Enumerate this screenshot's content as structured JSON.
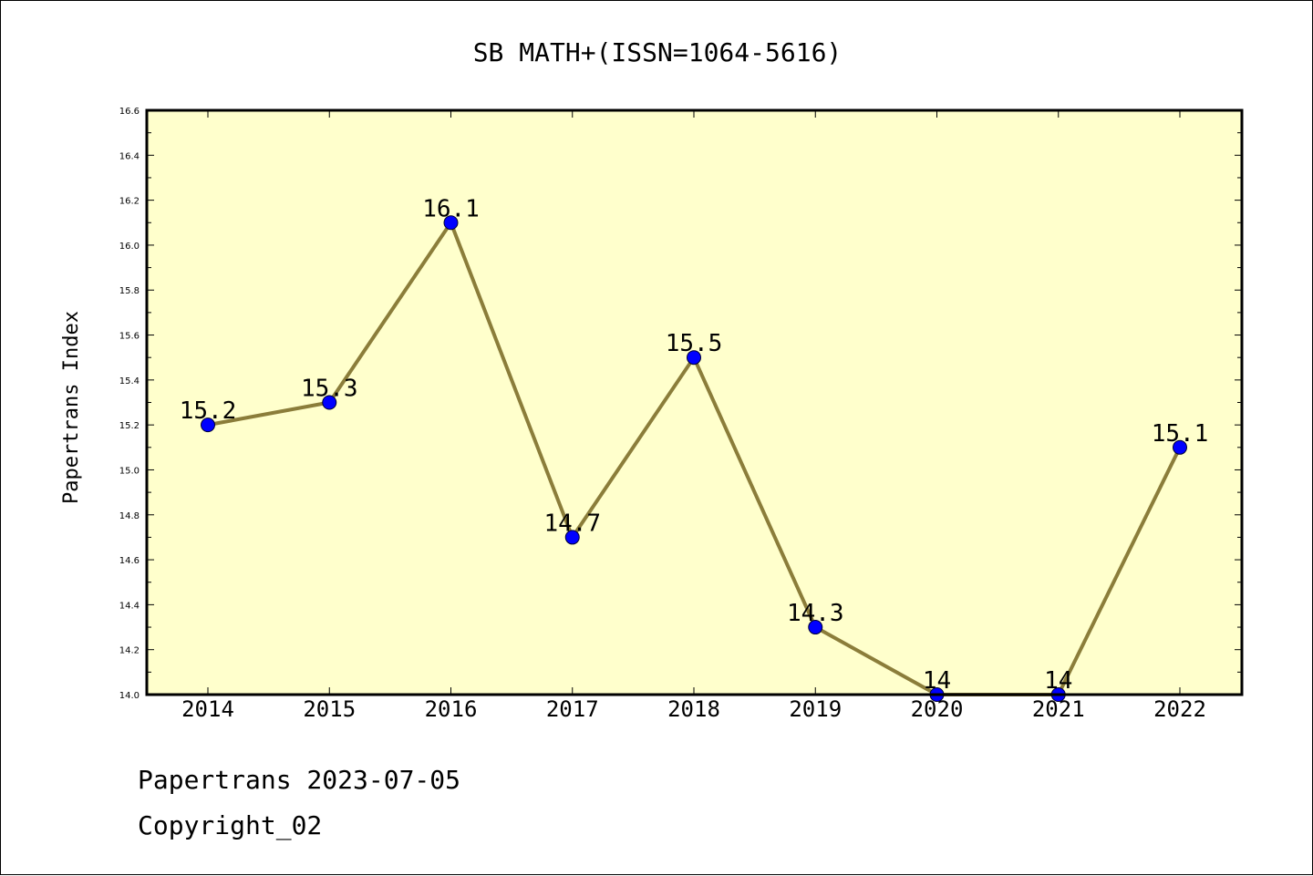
{
  "chart_data": {
    "type": "line",
    "title": "SB MATH+(ISSN=1064-5616)",
    "xlabel": "",
    "ylabel": "Papertrans Index",
    "categories": [
      "2014",
      "2015",
      "2016",
      "2017",
      "2018",
      "2019",
      "2020",
      "2021",
      "2022"
    ],
    "values": [
      15.2,
      15.3,
      16.1,
      14.7,
      15.5,
      14.3,
      14.0,
      14.0,
      15.1
    ],
    "data_labels": [
      "15.2",
      "15.3",
      "16.1",
      "14.7",
      "15.5",
      "14.3",
      "14",
      "14",
      "15.1"
    ],
    "ylim": [
      14.0,
      16.6
    ],
    "yticks": [
      "14.0",
      "14.2",
      "14.4",
      "14.6",
      "14.8",
      "15.0",
      "15.2",
      "15.4",
      "15.6",
      "15.8",
      "16.0",
      "16.2",
      "16.4",
      "16.6"
    ],
    "grid": false,
    "legend": "none",
    "colors": {
      "plot_background": "#ffffcc",
      "line": "#8b7d3a",
      "marker": "#0000ff"
    }
  },
  "footer": {
    "line1": "Papertrans 2023-07-05",
    "line2": "Copyright_02"
  }
}
